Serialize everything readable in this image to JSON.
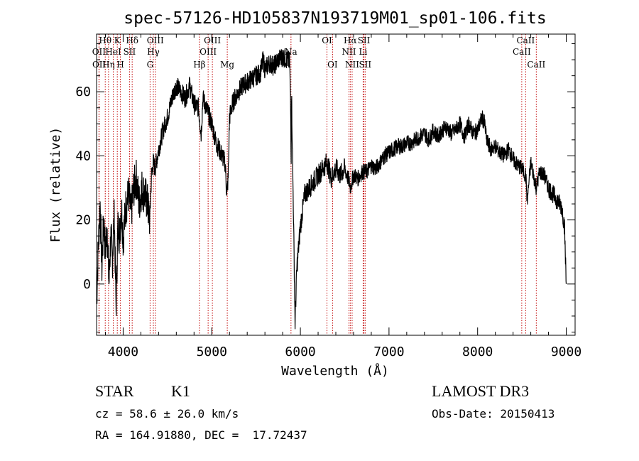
{
  "chart_data": {
    "type": "line",
    "title": "spec-57126-HD105837N193719M01_sp01-106.fits",
    "xlabel": "Wavelength (Å)",
    "ylabel": "Flux (relative)",
    "xlim": [
      3700,
      9100
    ],
    "ylim": [
      -16,
      78
    ],
    "xticks": [
      4000,
      5000,
      6000,
      7000,
      8000,
      9000
    ],
    "yticks": [
      0,
      20,
      40,
      60
    ],
    "grid": false,
    "series": [
      {
        "color": "#000000",
        "x": [
          3700,
          3720,
          3740,
          3760,
          3780,
          3800,
          3820,
          3840,
          3860,
          3880,
          3900,
          3920,
          3940,
          3960,
          3980,
          4000,
          4030,
          4060,
          4090,
          4120,
          4150,
          4180,
          4210,
          4240,
          4270,
          4300,
          4320,
          4340,
          4360,
          4400,
          4450,
          4500,
          4550,
          4600,
          4650,
          4700,
          4750,
          4800,
          4850,
          4880,
          4900,
          4950,
          5000,
          5050,
          5100,
          5150,
          5170,
          5185,
          5200,
          5230,
          5260,
          5300,
          5350,
          5400,
          5450,
          5500,
          5550,
          5580,
          5600,
          5650,
          5700,
          5750,
          5800,
          5850,
          5880,
          5890,
          5896,
          5900,
          5920,
          5940,
          5960,
          6000,
          6050,
          6100,
          6150,
          6200,
          6250,
          6300,
          6350,
          6400,
          6450,
          6500,
          6550,
          6563,
          6600,
          6650,
          6700,
          6750,
          6800,
          6850,
          6900,
          6950,
          7000,
          7050,
          7100,
          7150,
          7200,
          7250,
          7300,
          7350,
          7400,
          7450,
          7500,
          7550,
          7600,
          7650,
          7700,
          7750,
          7800,
          7850,
          7900,
          7950,
          8000,
          8050,
          8080,
          8100,
          8150,
          8200,
          8250,
          8300,
          8350,
          8400,
          8450,
          8500,
          8542,
          8560,
          8600,
          8662,
          8700,
          8750,
          8800,
          8850,
          8900,
          8950,
          8980,
          9000
        ],
        "y": [
          -5,
          12,
          25,
          5,
          20,
          10,
          18,
          0,
          15,
          8,
          22,
          -8,
          18,
          15,
          25,
          14,
          24,
          28,
          22,
          30,
          33,
          25,
          30,
          28,
          26,
          20,
          34,
          38,
          36,
          42,
          48,
          52,
          58,
          62,
          60,
          58,
          62,
          56,
          55,
          47,
          58,
          54,
          50,
          44,
          41,
          38,
          28,
          33,
          52,
          56,
          58,
          60,
          62,
          63,
          64,
          65,
          66,
          70,
          67,
          69,
          68,
          70,
          71,
          70,
          69,
          55,
          40,
          60,
          25,
          -12,
          5,
          18,
          28,
          30,
          32,
          34,
          36,
          38,
          33,
          36,
          34,
          36,
          32,
          30,
          34,
          33,
          35,
          35,
          37,
          36,
          38,
          40,
          41,
          42,
          43,
          43,
          44,
          44,
          45,
          46,
          47,
          45,
          48,
          46,
          48,
          49,
          47,
          48,
          50,
          46,
          50,
          47,
          48,
          52,
          50,
          45,
          42,
          43,
          41,
          40,
          42,
          39,
          37,
          36,
          34,
          26,
          38,
          30,
          35,
          34,
          30,
          28,
          26,
          24,
          18,
          0
        ]
      }
    ],
    "lines": [
      {
        "name": "OII",
        "x": 3727,
        "row": 2
      },
      {
        "name": "OII",
        "x": 3729,
        "row": 3
      },
      {
        "name": "Hθ",
        "x": 3798,
        "row": 1
      },
      {
        "name": "Hη",
        "x": 3835,
        "row": 3
      },
      {
        "name": "HeI",
        "x": 3889,
        "row": 2
      },
      {
        "name": "K",
        "x": 3934,
        "row": 1
      },
      {
        "name": "SII",
        "x": 4072,
        "row": 2
      },
      {
        "name": "H",
        "x": 3969,
        "row": 3
      },
      {
        "name": "Hδ",
        "x": 4102,
        "row": 1
      },
      {
        "name": "OIII",
        "x": 4363,
        "row": 1
      },
      {
        "name": "Hγ",
        "x": 4341,
        "row": 2
      },
      {
        "name": "G",
        "x": 4304,
        "row": 3
      },
      {
        "name": "Hβ",
        "x": 4861,
        "row": 3
      },
      {
        "name": "OIII",
        "x": 5007,
        "row": 1
      },
      {
        "name": "OIII",
        "x": 4959,
        "row": 2
      },
      {
        "name": "Mg",
        "x": 5175,
        "row": 3
      },
      {
        "name": "Na",
        "x": 5894,
        "row": 2
      },
      {
        "name": "OI",
        "x": 6300,
        "row": 1
      },
      {
        "name": "OI",
        "x": 6363,
        "row": 3
      },
      {
        "name": "Hα",
        "x": 6563,
        "row": 1
      },
      {
        "name": "NII",
        "x": 6548,
        "row": 2
      },
      {
        "name": "NII",
        "x": 6584,
        "row": 3
      },
      {
        "name": "SII",
        "x": 6717,
        "row": 1
      },
      {
        "name": "Li",
        "x": 6708,
        "row": 2
      },
      {
        "name": "SII",
        "x": 6731,
        "row": 3
      },
      {
        "name": "CaII",
        "x": 8498,
        "row": 2
      },
      {
        "name": "CaII",
        "x": 8542,
        "row": 1
      },
      {
        "name": "CaII",
        "x": 8662,
        "row": 3
      }
    ]
  },
  "footer": {
    "class_label": "STAR",
    "subclass": "K1",
    "survey": "LAMOST DR3",
    "cz": "cz = 58.6 ± 26.0 km/s",
    "obs_date": "Obs-Date: 20150413",
    "coords": "RA = 164.91880, DEC =  17.72437"
  }
}
